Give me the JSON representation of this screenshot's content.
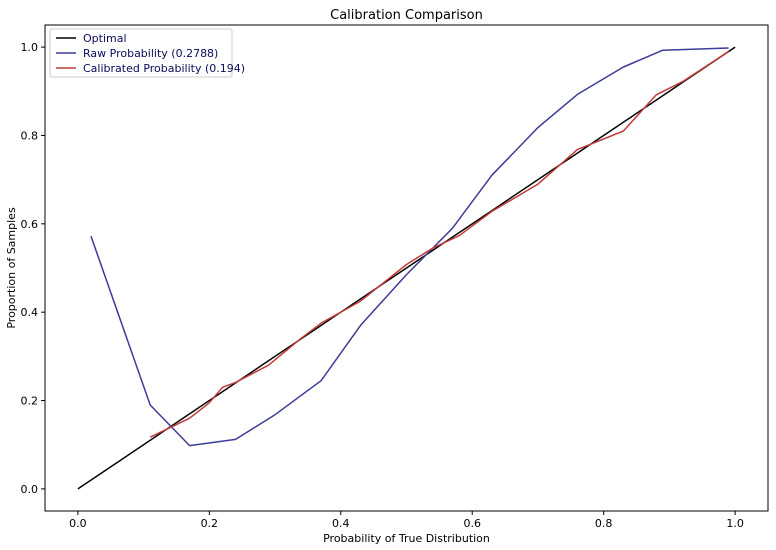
{
  "chart_data": {
    "type": "line",
    "title": "Calibration Comparison",
    "xlabel": "Probability of True Distribution",
    "ylabel": "Proportion of Samples",
    "xlim": [
      -0.05,
      1.05
    ],
    "ylim": [
      -0.05,
      1.05
    ],
    "xticks": [
      0.0,
      0.2,
      0.4,
      0.6,
      0.8,
      1.0
    ],
    "yticks": [
      0.0,
      0.2,
      0.4,
      0.6,
      0.8,
      1.0
    ],
    "xtick_labels": [
      "0.0",
      "0.2",
      "0.4",
      "0.6",
      "0.8",
      "1.0"
    ],
    "ytick_labels": [
      "0.0",
      "0.2",
      "0.4",
      "0.6",
      "0.8",
      "1.0"
    ],
    "grid": false,
    "legend_position": "top-left",
    "series": [
      {
        "name": "Optimal",
        "color": "#000000",
        "x": [
          0.0,
          1.0
        ],
        "y": [
          0.0,
          1.0
        ]
      },
      {
        "name": "Raw Probability (0.2788)",
        "color": "#3c3c9a",
        "x": [
          0.02,
          0.11,
          0.17,
          0.24,
          0.3,
          0.37,
          0.43,
          0.5,
          0.57,
          0.63,
          0.7,
          0.76,
          0.83,
          0.89,
          0.99
        ],
        "y": [
          0.572,
          0.19,
          0.098,
          0.112,
          0.168,
          0.245,
          0.37,
          0.485,
          0.59,
          0.71,
          0.818,
          0.893,
          0.955,
          0.993,
          0.998
        ]
      },
      {
        "name": "Calibrated Probability (0.194)",
        "color": "#c23b3b",
        "x": [
          0.11,
          0.17,
          0.2,
          0.22,
          0.24,
          0.29,
          0.34,
          0.37,
          0.43,
          0.5,
          0.54,
          0.58,
          0.63,
          0.7,
          0.76,
          0.83,
          0.88,
          0.92,
          0.99
        ],
        "y": [
          0.117,
          0.16,
          0.195,
          0.23,
          0.241,
          0.28,
          0.341,
          0.375,
          0.425,
          0.508,
          0.545,
          0.573,
          0.628,
          0.69,
          0.768,
          0.81,
          0.892,
          0.922,
          0.99
        ]
      }
    ]
  }
}
